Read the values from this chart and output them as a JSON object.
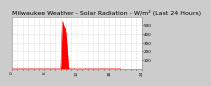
{
  "title": "Milwaukee Weather - Solar Radiation - W/m² (Last 24 Hours)",
  "bg_color": "#cccccc",
  "plot_bg_color": "#ffffff",
  "fill_color": "#ff0000",
  "line_color": "#ff0000",
  "grid_color": "#aaaaaa",
  "y_values": [
    0,
    0,
    0,
    0,
    0,
    0,
    0,
    0,
    0,
    0,
    0,
    0,
    0,
    0,
    0,
    0,
    0,
    0,
    0,
    0,
    0,
    0,
    0,
    0,
    0,
    0,
    0,
    0,
    0,
    0,
    0,
    0,
    0,
    0,
    0,
    0,
    0,
    0,
    0,
    0,
    0,
    0,
    0,
    0,
    0,
    0,
    0,
    0,
    0,
    0,
    0,
    0,
    0,
    0,
    0,
    0,
    0,
    0,
    0,
    0,
    0,
    0,
    0,
    0,
    0,
    0,
    0,
    0,
    0,
    0,
    0,
    0,
    0,
    0,
    0,
    0,
    0,
    0,
    0,
    0,
    0,
    0,
    0,
    0,
    0,
    0,
    0,
    0,
    0,
    0,
    0,
    0,
    0,
    0,
    0,
    0,
    0,
    0,
    0,
    0,
    0,
    0,
    0,
    0,
    0,
    0,
    0,
    0,
    0,
    0,
    0,
    0,
    0,
    0,
    0,
    0,
    0,
    0,
    0,
    0,
    0,
    0,
    0,
    0,
    0,
    0,
    0,
    0,
    0,
    0,
    0,
    0,
    0,
    0,
    0,
    0,
    0,
    0,
    0,
    0,
    0,
    0,
    0,
    0,
    0,
    0,
    0,
    0,
    0,
    0,
    0,
    0,
    0,
    0,
    0,
    0,
    0,
    0,
    0,
    0,
    0,
    0,
    0,
    0,
    0,
    0,
    0,
    0,
    0,
    0,
    0,
    0,
    0,
    0,
    0,
    0,
    0,
    0,
    0,
    0,
    0,
    0,
    0,
    0,
    0,
    0,
    0,
    0,
    0,
    0,
    0,
    0,
    0,
    0,
    0,
    0,
    0,
    0,
    0,
    0,
    0,
    0,
    0,
    0,
    0,
    0,
    0,
    0,
    0,
    0,
    0,
    0,
    0,
    0,
    0,
    0,
    0,
    0,
    0,
    0,
    0,
    0,
    0,
    0,
    0,
    0,
    0,
    0,
    0,
    0,
    0,
    0,
    0,
    0,
    0,
    0,
    0,
    0,
    0,
    0,
    0,
    0,
    0,
    0,
    0,
    0,
    0,
    0,
    0,
    0,
    0,
    0,
    0,
    0,
    0,
    0,
    0,
    0,
    0,
    0,
    0,
    0,
    0,
    0,
    0,
    0,
    0,
    0,
    0,
    0,
    0,
    0,
    0,
    0,
    0,
    0,
    0,
    0,
    0,
    0,
    0,
    0,
    0,
    0,
    0,
    0,
    0,
    0,
    0,
    0,
    0,
    0,
    0,
    0,
    0,
    0,
    0,
    0,
    0,
    0,
    0,
    0,
    0,
    0,
    0,
    0,
    0,
    0,
    0,
    0,
    0,
    0,
    0,
    0,
    0,
    0,
    0,
    0,
    0,
    0,
    0,
    0,
    0,
    0,
    0,
    0,
    0,
    0,
    0,
    0,
    0,
    0,
    0,
    0,
    0,
    0,
    0,
    0,
    0,
    0,
    0,
    0,
    0,
    0,
    0,
    0,
    0,
    0,
    0,
    0,
    0,
    0,
    0,
    0,
    0,
    0,
    0,
    0,
    0,
    0,
    0,
    0,
    0,
    0,
    0,
    0,
    0,
    0,
    0,
    0,
    0,
    0,
    0,
    0,
    0,
    0,
    0,
    0,
    0,
    0,
    0,
    0,
    0,
    0,
    0,
    0,
    0,
    0,
    0,
    0,
    0,
    0,
    0,
    0,
    0,
    0,
    0,
    0,
    0,
    0,
    0,
    0,
    0,
    0,
    0,
    0,
    0,
    0,
    0,
    0,
    0,
    0,
    0,
    0,
    0,
    0,
    0,
    0,
    0,
    0,
    0,
    0,
    0,
    0,
    0,
    0,
    0,
    0,
    0,
    0,
    0,
    0,
    0,
    0,
    0,
    0,
    0,
    0,
    0,
    0,
    0,
    0,
    0,
    0,
    0,
    0,
    0,
    0,
    0,
    0,
    0,
    0,
    0,
    0,
    0,
    0,
    0,
    0,
    0,
    0,
    0,
    0,
    0,
    0,
    0,
    0,
    0,
    0,
    0,
    0,
    0,
    0,
    0,
    0,
    0,
    0,
    0,
    0,
    0,
    0,
    0,
    0,
    0,
    0,
    0,
    0,
    0,
    0,
    0,
    0,
    0,
    0,
    0,
    0,
    0,
    0,
    0,
    0,
    0,
    0,
    0,
    0,
    0,
    0,
    0,
    0,
    0,
    0,
    0,
    0,
    0,
    0,
    0,
    0,
    0,
    0,
    0,
    0,
    0,
    0,
    0,
    0,
    0,
    0,
    0,
    0,
    0,
    0,
    0,
    0,
    0,
    0,
    0,
    0,
    0,
    0,
    0,
    2,
    5,
    8,
    12,
    20,
    30,
    45,
    60,
    90,
    120,
    160,
    200,
    240,
    280,
    320,
    355,
    380,
    400,
    430,
    460,
    480,
    500,
    510,
    520,
    530,
    535,
    540,
    542,
    540,
    535,
    530,
    525,
    520,
    515,
    510,
    505,
    502,
    500,
    498,
    496,
    494,
    490,
    488,
    485,
    482,
    480,
    478,
    476,
    474,
    472,
    470,
    468,
    465,
    462,
    460,
    455,
    450,
    445,
    440,
    435,
    430,
    420,
    410,
    400,
    390,
    380,
    370,
    360,
    350,
    340,
    325,
    310,
    295,
    280,
    265,
    250,
    235,
    220,
    205,
    190,
    175,
    160,
    145,
    130,
    115,
    100,
    85,
    70,
    55,
    42,
    30,
    20,
    12,
    7,
    4,
    2,
    1,
    0,
    0,
    0,
    0,
    0,
    0,
    0,
    0,
    0,
    0,
    0,
    0,
    0,
    0,
    0,
    0,
    0,
    0,
    0,
    0,
    0,
    0,
    0,
    0,
    0,
    0,
    0,
    0,
    0,
    0,
    0,
    0,
    0,
    0,
    0,
    0,
    0,
    0,
    0,
    0,
    0,
    0,
    0,
    0,
    0,
    0,
    0,
    0,
    0,
    0,
    0,
    0,
    0,
    0,
    0,
    0,
    0,
    0,
    0,
    0,
    0,
    0,
    0,
    0,
    0,
    0,
    0,
    0,
    0,
    0,
    0,
    0,
    0,
    0,
    0,
    0,
    0,
    0,
    0,
    0,
    0,
    0,
    0,
    0,
    0,
    0,
    0,
    0,
    0,
    0,
    0,
    0,
    0,
    0,
    0,
    0,
    0,
    0,
    0,
    0,
    0,
    0,
    0,
    0,
    0,
    0,
    0,
    0,
    0,
    0,
    0,
    0,
    0,
    0,
    0,
    0,
    0,
    0,
    0,
    0,
    0,
    0,
    0,
    0,
    0,
    0,
    0,
    0,
    0,
    0,
    0,
    0,
    0,
    0,
    0,
    0,
    0,
    0,
    0,
    0,
    0,
    0,
    0,
    0,
    0,
    0,
    0,
    0,
    0,
    0,
    0,
    0,
    0,
    0,
    0,
    0,
    0,
    0,
    0,
    0,
    0,
    0,
    0,
    0,
    0,
    0,
    0,
    0,
    0,
    0,
    0,
    0,
    0,
    0,
    0,
    0,
    0,
    0,
    0,
    0,
    0,
    0,
    0,
    0,
    0,
    0,
    0,
    0,
    0,
    0,
    0,
    0,
    0,
    0,
    0,
    0,
    0,
    0,
    0,
    0,
    0,
    0,
    0,
    0,
    0,
    0,
    0,
    0,
    0,
    0,
    0,
    0,
    0,
    0,
    0,
    0,
    0,
    0,
    0,
    0,
    0,
    0,
    0,
    0,
    0,
    0,
    0,
    0,
    0,
    0,
    0,
    0,
    0,
    0,
    0,
    0,
    0,
    0,
    0,
    0,
    0,
    0,
    0,
    0,
    0,
    0,
    0,
    0,
    0,
    0,
    0,
    0,
    0,
    0,
    0,
    0,
    0,
    0,
    0,
    0,
    0,
    0,
    0,
    0,
    0,
    0,
    0,
    0,
    0,
    0,
    0,
    0,
    0,
    0,
    0,
    0,
    0,
    0,
    0,
    0,
    0,
    0,
    0,
    0,
    0,
    0,
    0,
    0,
    0,
    0,
    0,
    0,
    0,
    0,
    0,
    0,
    0,
    0,
    0,
    0,
    0,
    0,
    0,
    0,
    0,
    0,
    0,
    0,
    0,
    0,
    0,
    0,
    0,
    0,
    0,
    0,
    0,
    0,
    0,
    0,
    0,
    0,
    0,
    0,
    0,
    0,
    0,
    0,
    0,
    0,
    0,
    0,
    0,
    0,
    0,
    0,
    0,
    0,
    0,
    0,
    0,
    0,
    0,
    0,
    0,
    0,
    0,
    0,
    0,
    0,
    0,
    0,
    0,
    0,
    0,
    0,
    0,
    0,
    0,
    0,
    0,
    0,
    0,
    0,
    0,
    0,
    0,
    0,
    0,
    0,
    0,
    0,
    0,
    0,
    0,
    0,
    0,
    0,
    0,
    0,
    0,
    0,
    0,
    0,
    0,
    0,
    0,
    0,
    0,
    0,
    0,
    0,
    0,
    0,
    0,
    0,
    0,
    0,
    0,
    0,
    0,
    0,
    0,
    0,
    0,
    0,
    0,
    0,
    0,
    0,
    0,
    0,
    0,
    0,
    0,
    0,
    0,
    0,
    0,
    0,
    0,
    0,
    0,
    0,
    0,
    0,
    0,
    0,
    0,
    0,
    0,
    0,
    0,
    0,
    0,
    0,
    0,
    0,
    0,
    0,
    0,
    0,
    0,
    0,
    0,
    0,
    0,
    0,
    0,
    0,
    0,
    0,
    0,
    0,
    0,
    0,
    0,
    0,
    0,
    0,
    0,
    0,
    0,
    0,
    0,
    0,
    0,
    0,
    0,
    0,
    0,
    0,
    0,
    0,
    0,
    0,
    0,
    0,
    0,
    0,
    0,
    0,
    0,
    0,
    0,
    0,
    0,
    0,
    0,
    0,
    0,
    0,
    0,
    0,
    0,
    0,
    0,
    0,
    0,
    0,
    0,
    0,
    0,
    0,
    0,
    0,
    0,
    0,
    0,
    0,
    0,
    0,
    0,
    0,
    0,
    0,
    0,
    0,
    0,
    0,
    0,
    0,
    0,
    0,
    0,
    0,
    0,
    0,
    0,
    0,
    0,
    0,
    0,
    0,
    0,
    0,
    0,
    0,
    0,
    0,
    0,
    0,
    0,
    0,
    0,
    0,
    0,
    0,
    0,
    0,
    0,
    0,
    0,
    0,
    0,
    0,
    0,
    0,
    0,
    0,
    0,
    0,
    0,
    0,
    0,
    0,
    0,
    0,
    0,
    0,
    0,
    0,
    0,
    0,
    0,
    0
  ],
  "vline1_x": 720,
  "vline2_x": 780,
  "ylim": [
    0,
    600
  ],
  "yticks": [
    100,
    200,
    300,
    400,
    500
  ],
  "title_fontsize": 4.5,
  "tick_fontsize": 3.0,
  "x_tick_positions": [
    0,
    60,
    120,
    180,
    240,
    300,
    360,
    420,
    480,
    540,
    600,
    660,
    720,
    780,
    840,
    900,
    960,
    1020,
    1080,
    1140,
    1200,
    1260,
    1320,
    1380,
    1439
  ],
  "x_tick_labels": [
    "0",
    "",
    "",
    "",
    "",
    "",
    "6",
    "",
    "",
    "",
    "",
    "",
    "12",
    "",
    "",
    "",
    "",
    "",
    "18",
    "",
    "",
    "",
    "",
    "",
    "24"
  ]
}
